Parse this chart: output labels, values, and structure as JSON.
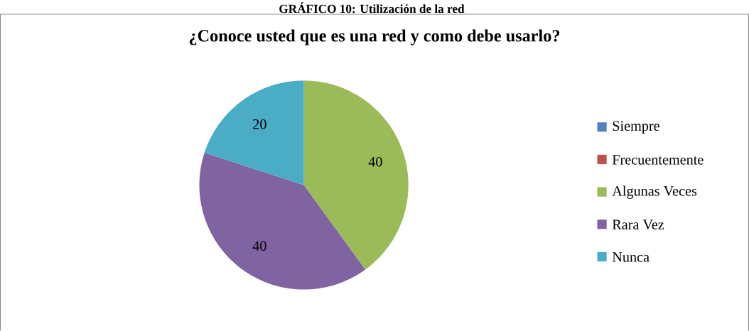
{
  "chart_data": {
    "type": "pie",
    "title": "¿Conoce usted que es una red y como debe usarlo?",
    "annotations": [
      "GRÁFICO 10: Utilización de la red"
    ],
    "categories": [
      "Siempre",
      "Frecuentemente",
      "Algunas Veces",
      "Rara Vez",
      "Nunca"
    ],
    "values": [
      0,
      0,
      40,
      40,
      20
    ],
    "value_labels": [
      null,
      null,
      "40",
      "40",
      "20"
    ],
    "colors": [
      "#4f81bd",
      "#c0504d",
      "#9bbb59",
      "#8064a2",
      "#4bacc6"
    ],
    "legend": "right"
  }
}
